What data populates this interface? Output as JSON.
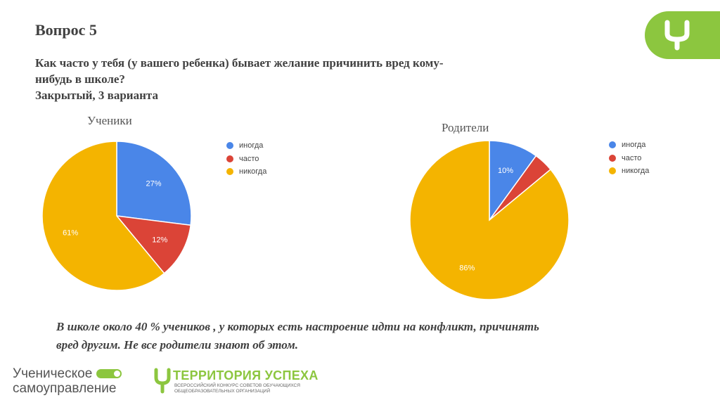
{
  "slide": {
    "title": "Вопрос 5",
    "question_line1": "Как часто у тебя  (у вашего ребенка) бывает желание причинить вред кому-",
    "question_line2": "нибудь в школе?",
    "question_type": "Закрытый, 3 варианта",
    "conclusion_line1": "В школе  около 40 % учеников ,  у которых есть настроение идти на конфликт, причинять",
    "conclusion_line2": "вред другим. Не все родители знают об этом."
  },
  "logos": {
    "bottom1_line1": "Ученическое",
    "bottom1_line2": "самоуправление",
    "bottom2_name": "ТЕРРИТОРИЯ УСПЕХА",
    "bottom2_sub1": "ВСЕРОССИЙСКИЙ КОНКУРС СОВЕТОВ ОБУЧАЮЩИХСЯ",
    "bottom2_sub2": "ОБЩЕОБРАЗОВАТЕЛЬНЫХ ОРГАНИЗАЦИЙ"
  },
  "colors": {
    "accent_green": "#8cc63f",
    "series_blue": "#4a86e8",
    "series_red": "#db4437",
    "series_yellow": "#f4b400"
  },
  "chart_data": [
    {
      "type": "pie",
      "title": "Ученики",
      "labels": [
        "иногда",
        "часто",
        "никогда"
      ],
      "values": [
        27,
        12,
        61
      ],
      "data_labels": [
        "27%",
        "12%",
        "61%"
      ],
      "colors": [
        "#4a86e8",
        "#db4437",
        "#f4b400"
      ],
      "legend": "right"
    },
    {
      "type": "pie",
      "title": "Родители",
      "labels": [
        "иногда",
        "часто",
        "никогда"
      ],
      "values": [
        10,
        4,
        86
      ],
      "data_labels": [
        "10%",
        "",
        "86%"
      ],
      "colors": [
        "#4a86e8",
        "#db4437",
        "#f4b400"
      ],
      "legend": "right"
    }
  ]
}
